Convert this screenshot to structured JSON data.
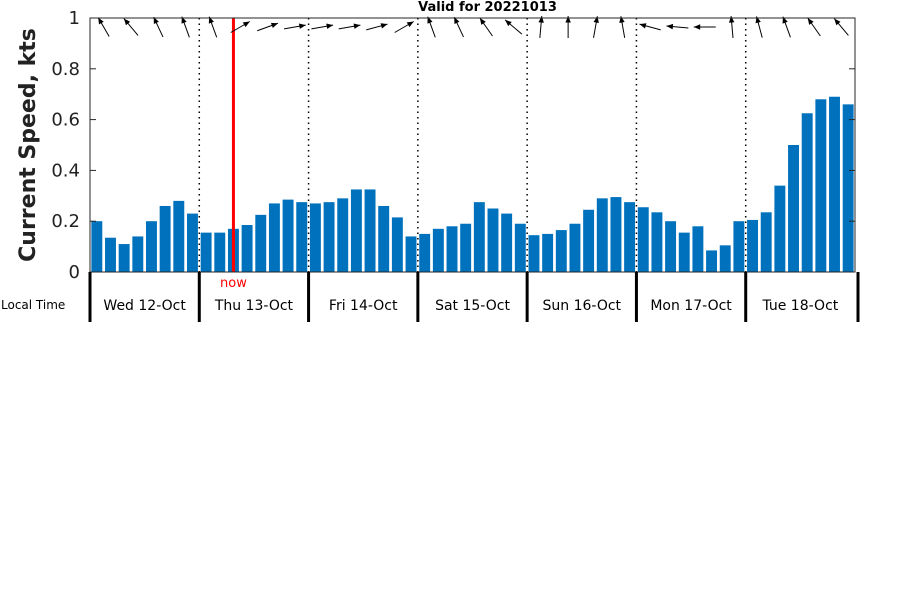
{
  "chart_data": {
    "type": "bar",
    "title": "Valid for 20221013",
    "ylabel": "Current Speed, kts",
    "xlabel_left": "Local Time",
    "ylim": [
      0,
      1
    ],
    "yticks": [
      "0",
      "0.2",
      "0.4",
      "0.6",
      "0.8",
      "1"
    ],
    "bar_color": "#0072BD",
    "now_color": "#FF0000",
    "now_label": "now",
    "now_index": 10.5,
    "days": [
      "Wed 12-Oct",
      "Thu 13-Oct",
      "Fri 14-Oct",
      "Sat 15-Oct",
      "Sun 16-Oct",
      "Mon 17-Oct",
      "Tue 18-Oct"
    ],
    "values": [
      0.2,
      0.135,
      0.11,
      0.14,
      0.2,
      0.26,
      0.28,
      0.23,
      0.155,
      0.155,
      0.17,
      0.185,
      0.225,
      0.27,
      0.285,
      0.275,
      0.27,
      0.275,
      0.29,
      0.325,
      0.325,
      0.26,
      0.215,
      0.14,
      0.15,
      0.17,
      0.18,
      0.19,
      0.275,
      0.25,
      0.23,
      0.19,
      0.145,
      0.15,
      0.165,
      0.19,
      0.245,
      0.29,
      0.295,
      0.275,
      0.255,
      0.235,
      0.2,
      0.155,
      0.18,
      0.085,
      0.105,
      0.2,
      0.205,
      0.235,
      0.34,
      0.5,
      0.625,
      0.68,
      0.69,
      0.66
    ],
    "direction_deg": [
      -30,
      -40,
      -25,
      -20,
      -20,
      60,
      70,
      80,
      80,
      80,
      75,
      60,
      -20,
      -25,
      -35,
      -50,
      5,
      0,
      10,
      -10,
      -75,
      -85,
      -90,
      -5,
      -15,
      -20,
      -35,
      -40
    ]
  }
}
